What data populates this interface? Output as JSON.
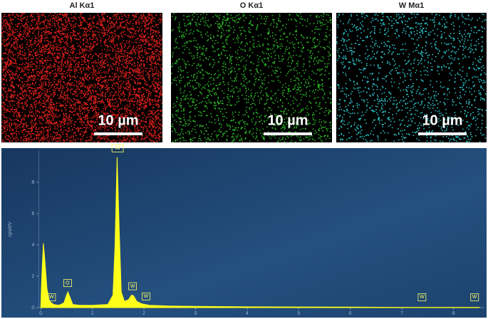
{
  "maps": [
    {
      "title": "Al Kα1",
      "color": "#e8221e",
      "scale_bar": "10 µm"
    },
    {
      "title": "O Kα1",
      "color": "#2fc42a",
      "scale_bar": "10 µm"
    },
    {
      "title": "W Mα1",
      "color": "#2fd6dc",
      "scale_bar": "10 µm"
    }
  ],
  "chart_data": {
    "type": "area",
    "ylabel": "cps/eV",
    "color": "#ffff1a",
    "x": [
      0.0,
      0.02,
      0.05,
      0.08,
      0.12,
      0.17,
      0.25,
      0.35,
      0.45,
      0.5,
      0.525,
      0.56,
      0.62,
      0.75,
      1.0,
      1.3,
      1.4,
      1.44,
      1.48,
      1.52,
      1.56,
      1.62,
      1.7,
      1.76,
      1.8,
      1.86,
      1.95,
      2.1,
      2.5,
      3,
      4,
      5,
      6,
      7,
      8,
      8.5
    ],
    "values": [
      0,
      2.0,
      4.1,
      3.0,
      1.2,
      0.4,
      0.2,
      0.15,
      0.3,
      0.8,
      1.0,
      0.7,
      0.2,
      0.15,
      0.15,
      0.2,
      0.8,
      4.0,
      9.6,
      5.0,
      1.0,
      0.4,
      0.5,
      0.8,
      0.75,
      0.4,
      0.25,
      0.15,
      0.1,
      0.08,
      0.05,
      0.04,
      0.03,
      0.02,
      0.02,
      0.02
    ],
    "xlim": [
      -0.1,
      8.6
    ],
    "ylim": [
      0,
      10
    ],
    "xticks": [
      0,
      1,
      2,
      3,
      4,
      5,
      6,
      7,
      8
    ],
    "yticks": [
      0,
      2,
      4,
      6,
      8
    ],
    "annotations": [
      {
        "text": "W",
        "x": 0.21,
        "y": 0.3
      },
      {
        "text": "O",
        "x": 0.52,
        "y": 1.2
      },
      {
        "text": "Al",
        "x": 1.49,
        "y": 9.8
      },
      {
        "text": "W",
        "x": 1.78,
        "y": 1.0
      },
      {
        "text": "W",
        "x": 2.04,
        "y": 0.35
      },
      {
        "text": "W",
        "x": 7.39,
        "y": 0.3
      },
      {
        "text": "W",
        "x": 8.41,
        "y": 0.3
      }
    ]
  }
}
